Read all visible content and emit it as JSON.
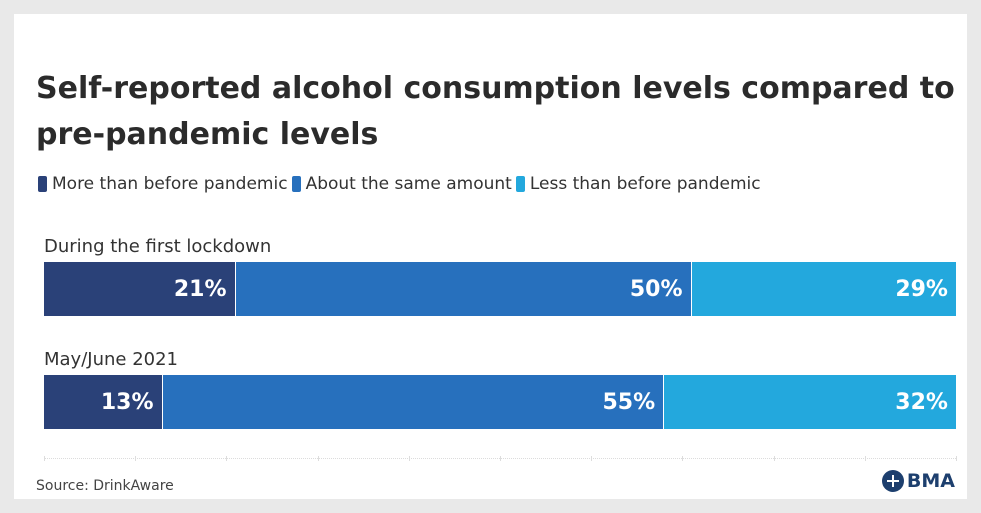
{
  "chart_data": {
    "type": "bar",
    "orientation": "horizontal",
    "stacked": true,
    "title": "Self-reported alcohol consumption levels compared to pre-pandemic levels",
    "categories": [
      "During the first lockdown",
      "May/June 2021"
    ],
    "series": [
      {
        "name": "More than before pandemic",
        "values": [
          21,
          13
        ],
        "color": "#2a4178"
      },
      {
        "name": "About the same amount",
        "values": [
          50,
          55
        ],
        "color": "#2770bd"
      },
      {
        "name": "Less than before pandemic",
        "values": [
          29,
          32
        ],
        "color": "#23a8dd"
      }
    ],
    "value_suffix": "%",
    "xlim": [
      0,
      100
    ],
    "legend_position": "top-left",
    "grid": false
  },
  "source": "Source: DrinkAware",
  "logo_text": "BMA"
}
